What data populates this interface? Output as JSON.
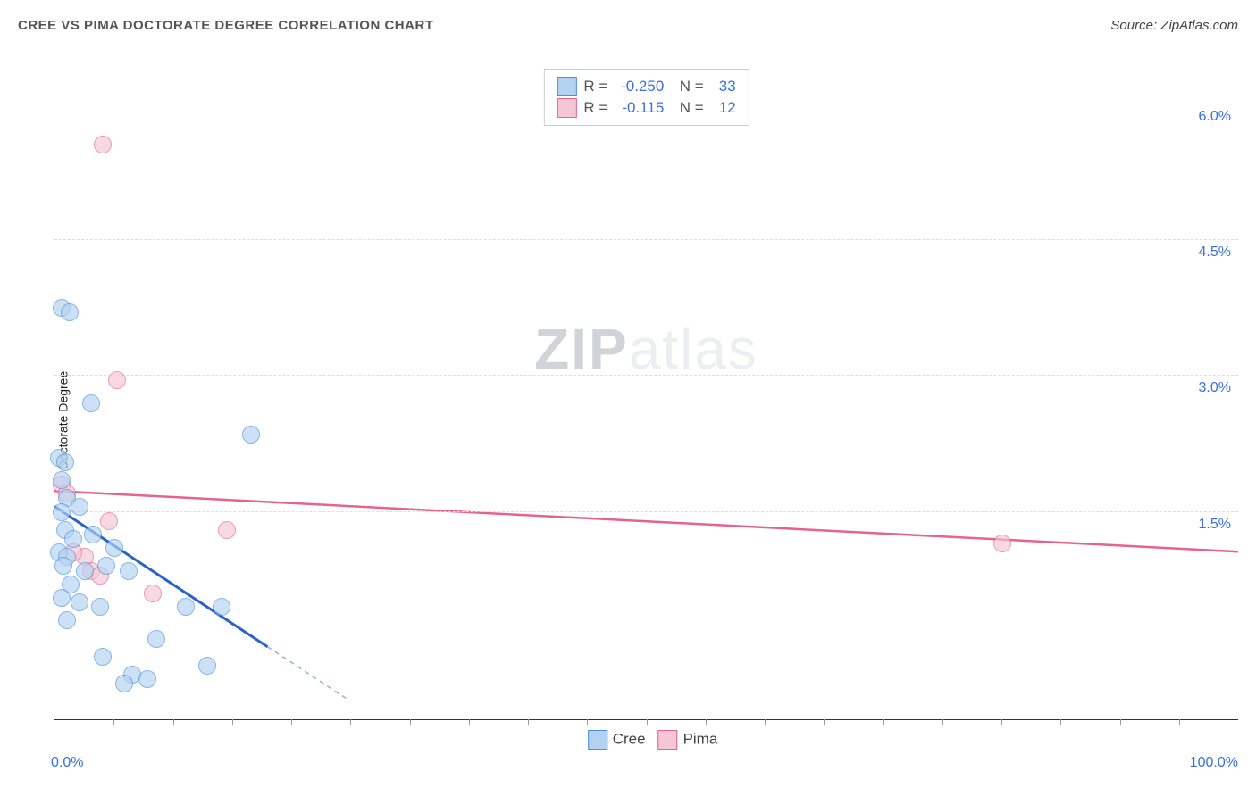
{
  "header": {
    "title": "CREE VS PIMA DOCTORATE DEGREE CORRELATION CHART",
    "source_prefix": "Source: ",
    "source_link": "ZipAtlas.com"
  },
  "chart": {
    "type": "scatter",
    "ylabel": "Doctorate Degree",
    "xlim": [
      0,
      100
    ],
    "ylim": [
      -0.8,
      6.5
    ],
    "x_axis_labels": {
      "min": "0.0%",
      "max": "100.0%"
    },
    "y_ticks": [
      {
        "v": 1.5,
        "label": "1.5%"
      },
      {
        "v": 3.0,
        "label": "3.0%"
      },
      {
        "v": 4.5,
        "label": "4.5%"
      },
      {
        "v": 6.0,
        "label": "6.0%"
      }
    ],
    "x_minor_ticks": [
      5,
      10,
      15,
      20,
      25,
      30,
      35,
      40,
      45,
      50,
      55,
      60,
      65,
      70,
      75,
      80,
      85,
      90,
      95
    ],
    "background_color": "#ffffff",
    "grid_color": "#dddddd",
    "marker_size": 18,
    "series": {
      "cree": {
        "label": "Cree",
        "fill": "#b3d2f2",
        "stroke": "#4a8fd9",
        "trend_color": "#2a62c9",
        "trend_width": 3,
        "trend": {
          "x1": 0,
          "y1": 1.55,
          "x2_solid": 18,
          "y2_solid": 0.0,
          "x2_dash": 25,
          "y2_dash": -0.6
        },
        "points": [
          [
            0.5,
            3.75
          ],
          [
            1.2,
            3.7
          ],
          [
            3.0,
            2.7
          ],
          [
            0.3,
            2.1
          ],
          [
            0.8,
            2.05
          ],
          [
            0.5,
            1.85
          ],
          [
            16.5,
            2.35
          ],
          [
            1.0,
            1.65
          ],
          [
            0.5,
            1.5
          ],
          [
            2.0,
            1.55
          ],
          [
            0.8,
            1.3
          ],
          [
            3.2,
            1.25
          ],
          [
            1.5,
            1.2
          ],
          [
            0.3,
            1.05
          ],
          [
            1.0,
            1.0
          ],
          [
            5.0,
            1.1
          ],
          [
            0.7,
            0.9
          ],
          [
            2.5,
            0.85
          ],
          [
            4.3,
            0.9
          ],
          [
            1.3,
            0.7
          ],
          [
            6.2,
            0.85
          ],
          [
            0.5,
            0.55
          ],
          [
            2.0,
            0.5
          ],
          [
            3.8,
            0.45
          ],
          [
            1.0,
            0.3
          ],
          [
            11.0,
            0.45
          ],
          [
            14.0,
            0.45
          ],
          [
            8.5,
            0.1
          ],
          [
            4.0,
            -0.1
          ],
          [
            6.5,
            -0.3
          ],
          [
            7.8,
            -0.35
          ],
          [
            5.8,
            -0.4
          ],
          [
            12.8,
            -0.2
          ]
        ]
      },
      "pima": {
        "label": "Pima",
        "fill": "#f5c6d5",
        "stroke": "#e6628f",
        "trend_color": "#e6628f",
        "trend_width": 2.5,
        "trend": {
          "x1": 0,
          "y1": 1.72,
          "x2": 100,
          "y2": 1.05
        },
        "points": [
          [
            4.0,
            5.55
          ],
          [
            5.2,
            2.95
          ],
          [
            0.5,
            1.8
          ],
          [
            1.0,
            1.7
          ],
          [
            4.5,
            1.4
          ],
          [
            14.5,
            1.3
          ],
          [
            2.5,
            1.0
          ],
          [
            1.5,
            1.05
          ],
          [
            3.0,
            0.85
          ],
          [
            3.8,
            0.8
          ],
          [
            8.2,
            0.6
          ],
          [
            80.0,
            1.15
          ]
        ]
      }
    },
    "stats": [
      {
        "series": "cree",
        "R": "-0.250",
        "N": "33"
      },
      {
        "series": "pima",
        "R": "-0.115",
        "N": "12"
      }
    ],
    "watermark": {
      "bold": "ZIP",
      "rest": "atlas"
    }
  }
}
